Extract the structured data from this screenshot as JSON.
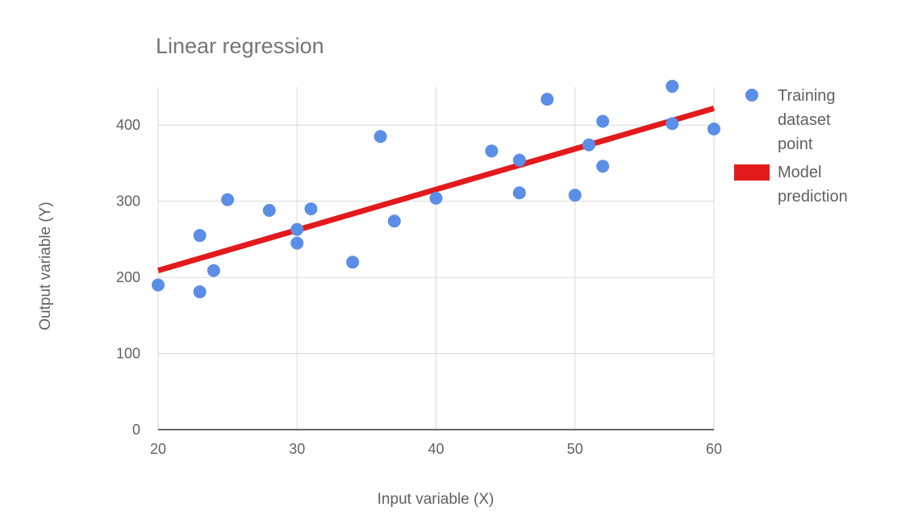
{
  "chart_data": {
    "type": "scatter",
    "title": "Linear regression",
    "xlabel": "Input variable (X)",
    "ylabel": "Output variable (Y)",
    "xlim": [
      20,
      60
    ],
    "ylim": [
      0,
      450
    ],
    "x_ticks": [
      20,
      30,
      40,
      50,
      60
    ],
    "y_ticks": [
      0,
      100,
      200,
      300,
      400
    ],
    "grid": true,
    "legend_position": "right",
    "series": [
      {
        "name": "Training dataset point",
        "name_lines": [
          "Training",
          "dataset",
          "point"
        ],
        "type": "scatter",
        "color": "#5b8ee6",
        "points": [
          [
            20,
            190
          ],
          [
            23,
            255
          ],
          [
            23,
            181
          ],
          [
            24,
            209
          ],
          [
            25,
            302
          ],
          [
            28,
            288
          ],
          [
            30,
            263
          ],
          [
            30,
            245
          ],
          [
            31,
            290
          ],
          [
            34,
            220
          ],
          [
            36,
            385
          ],
          [
            37,
            274
          ],
          [
            40,
            304
          ],
          [
            44,
            366
          ],
          [
            46,
            354
          ],
          [
            46,
            311
          ],
          [
            48,
            434
          ],
          [
            50,
            308
          ],
          [
            51,
            374
          ],
          [
            52,
            405
          ],
          [
            52,
            346
          ],
          [
            57,
            451
          ],
          [
            57,
            402
          ],
          [
            60,
            395
          ]
        ]
      },
      {
        "name": "Model prediction",
        "name_lines": [
          "Model",
          "prediction"
        ],
        "type": "line",
        "color": "#e31a1c",
        "points": [
          [
            20,
            209
          ],
          [
            60,
            422
          ]
        ]
      }
    ]
  }
}
